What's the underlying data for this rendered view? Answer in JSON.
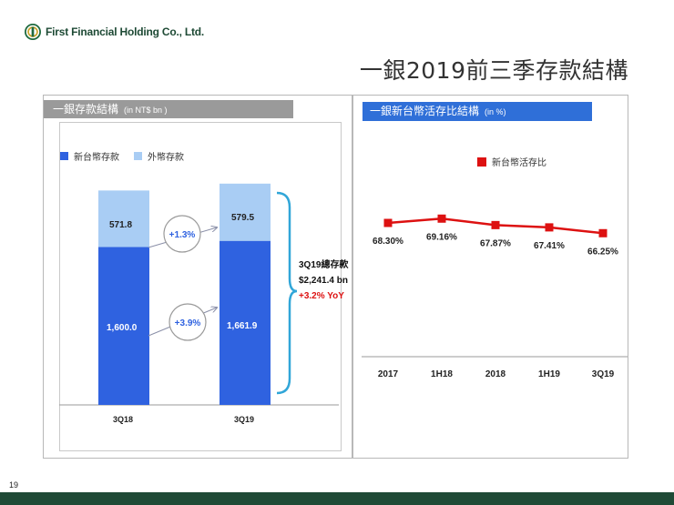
{
  "company": {
    "name": "First Financial Holding Co., Ltd."
  },
  "slide": {
    "title": "一銀2019前三季存款結構",
    "page_number": "19"
  },
  "colors": {
    "ntd": "#2f62e0",
    "foreign": "#a9cdf4",
    "line": "#dd1111",
    "header_blue": "#2f6fd8",
    "header_gray": "#9a9a9a",
    "brace": "#31a6d8",
    "footer": "#1f4a36"
  },
  "left_panel": {
    "header": "一銀存款結構",
    "unit": "(in NT$ bn )",
    "legend": [
      "新台幣存款",
      "外幣存款"
    ],
    "total": {
      "label": "3Q19總存款",
      "value": "$2,241.4 bn",
      "yoy": "+3.2% YoY"
    }
  },
  "right_panel": {
    "header": "一銀新台幣活存比結構",
    "unit": "(in %)",
    "legend": [
      "新台幣活存比"
    ]
  },
  "chart_data": [
    {
      "type": "bar",
      "stacked": true,
      "categories": [
        "3Q18",
        "3Q19"
      ],
      "series": [
        {
          "name": "新台幣存款",
          "values": [
            1600.0,
            1661.9
          ],
          "labels": [
            "1,600.0",
            "1,661.9"
          ]
        },
        {
          "name": "外幣存款",
          "values": [
            571.8,
            579.5
          ],
          "labels": [
            "571.8",
            "579.5"
          ]
        }
      ],
      "growth_annotations": [
        "+1.3%",
        "+3.9%"
      ],
      "title": "一銀存款結構",
      "ylim": [
        0,
        2300
      ],
      "grid": false
    },
    {
      "type": "line",
      "categories": [
        "2017",
        "1H18",
        "2018",
        "1H19",
        "3Q19"
      ],
      "series": [
        {
          "name": "新台幣活存比",
          "values": [
            68.3,
            69.16,
            67.87,
            67.41,
            66.25
          ],
          "labels": [
            "68.30%",
            "69.16%",
            "67.87%",
            "67.41%",
            "66.25%"
          ]
        }
      ],
      "title": "一銀新台幣活存比結構",
      "ylim": [
        40,
        80
      ],
      "grid": false
    }
  ]
}
